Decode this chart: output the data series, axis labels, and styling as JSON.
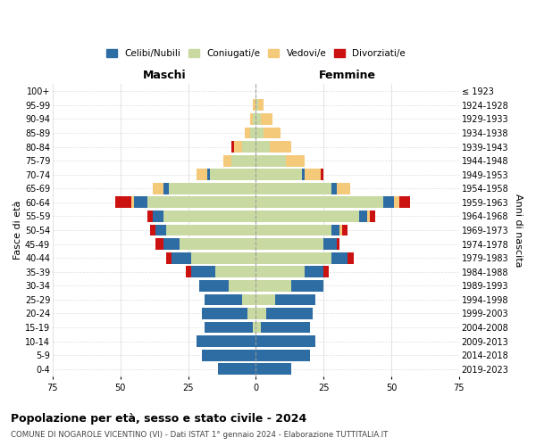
{
  "age_groups": [
    "0-4",
    "5-9",
    "10-14",
    "15-19",
    "20-24",
    "25-29",
    "30-34",
    "35-39",
    "40-44",
    "45-49",
    "50-54",
    "55-59",
    "60-64",
    "65-69",
    "70-74",
    "75-79",
    "80-84",
    "85-89",
    "90-94",
    "95-99",
    "100+"
  ],
  "birth_years": [
    "2019-2023",
    "2014-2018",
    "2009-2013",
    "2004-2008",
    "1999-2003",
    "1994-1998",
    "1989-1993",
    "1984-1988",
    "1979-1983",
    "1974-1978",
    "1969-1973",
    "1964-1968",
    "1959-1963",
    "1954-1958",
    "1949-1953",
    "1944-1948",
    "1939-1943",
    "1934-1938",
    "1929-1933",
    "1924-1928",
    "≤ 1923"
  ],
  "males": {
    "celibi": [
      14,
      20,
      22,
      18,
      17,
      14,
      11,
      9,
      7,
      6,
      4,
      4,
      5,
      2,
      1,
      0,
      0,
      0,
      0,
      0,
      0
    ],
    "coniugati": [
      0,
      0,
      0,
      1,
      3,
      5,
      10,
      15,
      24,
      28,
      33,
      34,
      40,
      32,
      17,
      9,
      5,
      2,
      1,
      0,
      0
    ],
    "vedovi": [
      0,
      0,
      0,
      0,
      0,
      0,
      0,
      0,
      0,
      0,
      0,
      0,
      1,
      4,
      4,
      3,
      3,
      2,
      1,
      1,
      0
    ],
    "divorziati": [
      0,
      0,
      0,
      0,
      0,
      0,
      0,
      2,
      2,
      3,
      2,
      2,
      6,
      0,
      0,
      0,
      1,
      0,
      0,
      0,
      0
    ]
  },
  "females": {
    "nubili": [
      13,
      20,
      22,
      18,
      17,
      15,
      12,
      7,
      6,
      5,
      3,
      3,
      4,
      2,
      1,
      0,
      0,
      0,
      0,
      0,
      0
    ],
    "coniugate": [
      0,
      0,
      0,
      2,
      4,
      7,
      13,
      18,
      28,
      25,
      28,
      38,
      47,
      28,
      17,
      11,
      5,
      3,
      2,
      1,
      0
    ],
    "vedove": [
      0,
      0,
      0,
      0,
      0,
      0,
      0,
      0,
      0,
      0,
      1,
      1,
      2,
      5,
      6,
      7,
      8,
      6,
      4,
      2,
      0
    ],
    "divorziate": [
      0,
      0,
      0,
      0,
      0,
      0,
      0,
      2,
      2,
      1,
      2,
      2,
      4,
      0,
      1,
      0,
      0,
      0,
      0,
      0,
      0
    ]
  },
  "colors": {
    "celibi_nubili": "#2e6da4",
    "coniugati": "#c8d9a2",
    "vedovi": "#f5c97a",
    "divorziati": "#cc1111"
  },
  "xlim": 75,
  "title": "Popolazione per età, sesso e stato civile - 2024",
  "subtitle": "COMUNE DI NOGAROLE VICENTINO (VI) - Dati ISTAT 1° gennaio 2024 - Elaborazione TUTTITALIA.IT",
  "ylabel_left": "Fasce di età",
  "ylabel_right": "Anni di nascita",
  "xlabel_maschi": "Maschi",
  "xlabel_femmine": "Femmine",
  "legend_labels": [
    "Celibi/Nubili",
    "Coniugati/e",
    "Vedovi/e",
    "Divorziati/e"
  ],
  "bg_color": "#ffffff",
  "grid_color": "#cccccc"
}
